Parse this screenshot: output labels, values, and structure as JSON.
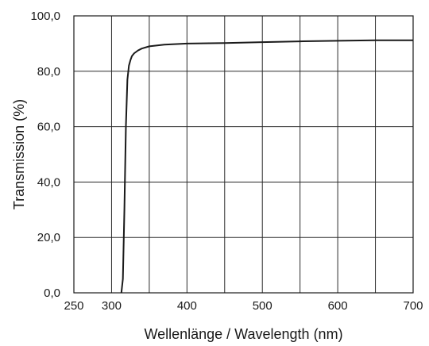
{
  "chart_data": {
    "type": "line",
    "title": "",
    "xlabel": "Wellenlänge / Wavelength (nm)",
    "ylabel": "Transmission (%)",
    "xlim": [
      250,
      700
    ],
    "ylim": [
      0,
      100
    ],
    "x_ticks": [
      250,
      300,
      400,
      500,
      600,
      700
    ],
    "x_tick_labels": [
      "250",
      "300",
      "400",
      "500",
      "600",
      "700"
    ],
    "x_gridlines": [
      250,
      300,
      350,
      400,
      450,
      500,
      550,
      600,
      650,
      700
    ],
    "y_ticks": [
      0,
      20,
      40,
      60,
      80,
      100
    ],
    "y_tick_labels": [
      "0,0",
      "20,0",
      "40,0",
      "60,0",
      "80,0",
      "100,0"
    ],
    "y_gridlines": [
      0,
      20,
      40,
      60,
      80,
      100
    ],
    "grid": true,
    "legend": "none",
    "series": [
      {
        "color": "#1a1a1a",
        "x": [
          313,
          315,
          317,
          319,
          321,
          323,
          325,
          327,
          330,
          335,
          340,
          350,
          370,
          400,
          450,
          500,
          550,
          600,
          650,
          700
        ],
        "y": [
          0,
          5,
          30,
          60,
          77,
          82,
          84,
          85.5,
          86.5,
          87.5,
          88.2,
          89,
          89.6,
          90,
          90.2,
          90.5,
          90.8,
          91,
          91.2,
          91.2
        ]
      }
    ]
  }
}
